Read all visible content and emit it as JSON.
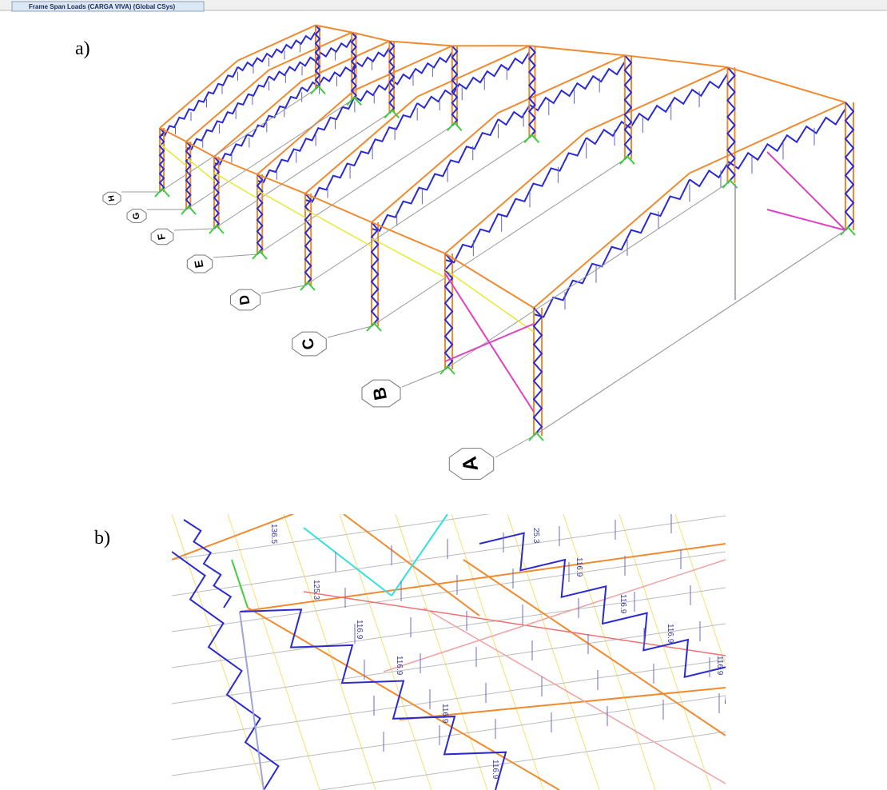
{
  "tab": {
    "title": "Frame Span Loads (CARGA VIVA) (Global CSys)"
  },
  "panels": [
    {
      "label": "a)",
      "grid_labels": [
        "A",
        "B",
        "C",
        "D",
        "E",
        "F",
        "G",
        "H"
      ]
    },
    {
      "label": "b)",
      "load_labels": [
        "136.5",
        "125.3",
        "25.3",
        "116.9",
        "116.9",
        "116.9",
        "116.9",
        "116.9",
        "116.9",
        "116.9",
        "116.9"
      ]
    }
  ]
}
